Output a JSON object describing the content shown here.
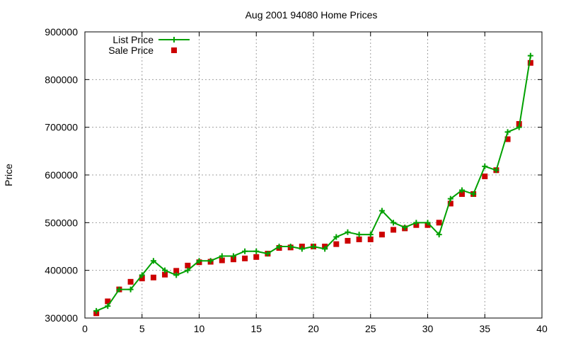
{
  "chart_data": {
    "type": "line",
    "title": "Aug 2001 94080 Home Prices",
    "xlabel": "",
    "ylabel": "Price",
    "xlim": [
      0,
      40
    ],
    "ylim": [
      300000,
      900000
    ],
    "xticks": [
      0,
      5,
      10,
      15,
      20,
      25,
      30,
      35,
      40
    ],
    "yticks": [
      300000,
      400000,
      500000,
      600000,
      700000,
      800000,
      900000
    ],
    "grid": true,
    "legend_position": "top-left",
    "series": [
      {
        "name": "List Price",
        "style": "line-with-plus-markers",
        "color": "#00a000",
        "x": [
          1,
          2,
          3,
          4,
          5,
          6,
          7,
          8,
          9,
          10,
          11,
          12,
          13,
          14,
          15,
          16,
          17,
          18,
          19,
          20,
          21,
          22,
          23,
          24,
          25,
          26,
          27,
          28,
          29,
          30,
          31,
          32,
          33,
          34,
          35,
          36,
          37,
          38,
          39
        ],
        "values": [
          315000,
          325000,
          360000,
          360000,
          390000,
          420000,
          400000,
          390000,
          400000,
          420000,
          420000,
          430000,
          430000,
          440000,
          440000,
          435000,
          450000,
          450000,
          445000,
          450000,
          445000,
          470000,
          480000,
          475000,
          475000,
          525000,
          500000,
          490000,
          500000,
          500000,
          475000,
          550000,
          568000,
          560000,
          618000,
          610000,
          690000,
          700000,
          850000
        ]
      },
      {
        "name": "Sale Price",
        "style": "square-markers",
        "color": "#cc0000",
        "x": [
          1,
          2,
          3,
          4,
          5,
          6,
          7,
          8,
          9,
          10,
          11,
          12,
          13,
          14,
          15,
          16,
          17,
          18,
          19,
          20,
          21,
          22,
          23,
          24,
          25,
          26,
          27,
          28,
          29,
          30,
          31,
          32,
          33,
          34,
          35,
          36,
          37,
          38,
          39
        ],
        "values": [
          310000,
          335000,
          360000,
          376000,
          383000,
          385000,
          391000,
          399000,
          410000,
          417000,
          418000,
          421000,
          423000,
          425000,
          428000,
          435000,
          447000,
          448000,
          450000,
          450000,
          450000,
          455000,
          462000,
          465000,
          465000,
          475000,
          485000,
          488000,
          495000,
          495000,
          500000,
          540000,
          560000,
          560000,
          597000,
          610000,
          675000,
          707000,
          835000
        ]
      }
    ]
  }
}
